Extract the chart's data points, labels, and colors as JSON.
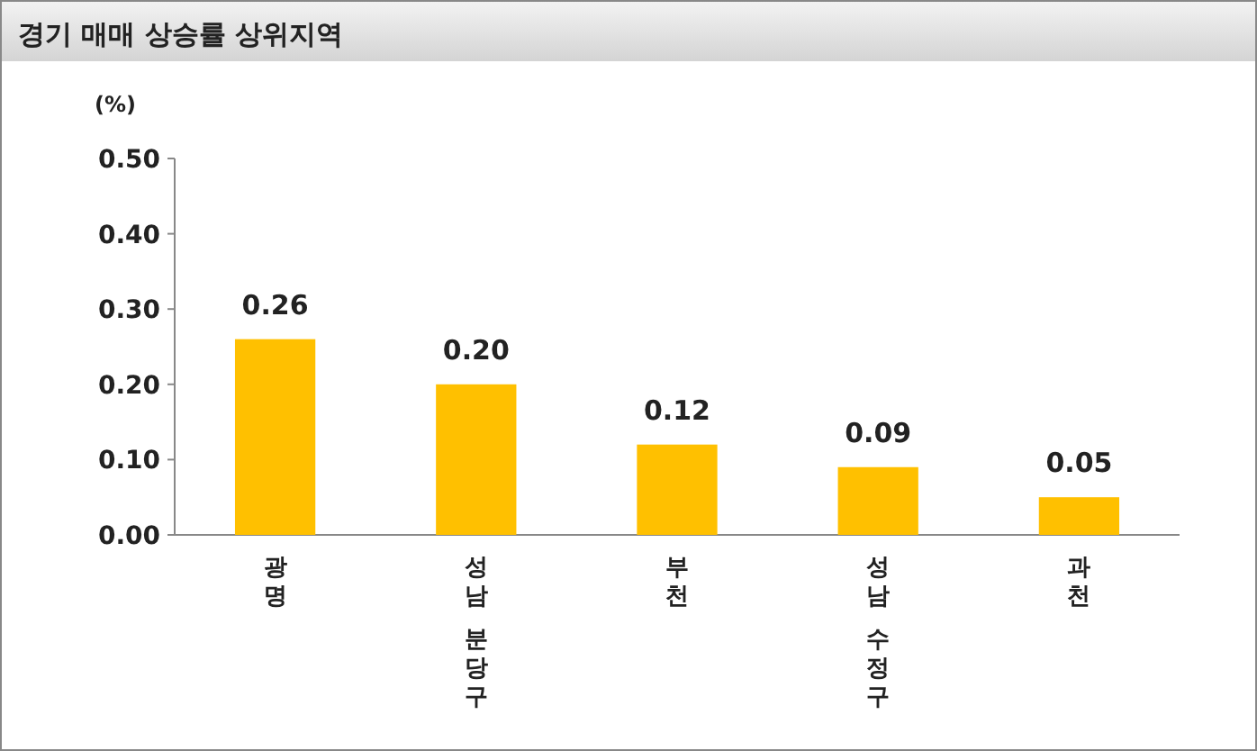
{
  "chart_data": {
    "type": "bar",
    "title": "경기 매매 상승률 상위지역",
    "ylabel": "(%)",
    "categories": [
      "광명",
      "성남 분당구",
      "부천",
      "성남 수정구",
      "과천"
    ],
    "values": [
      0.26,
      0.2,
      0.12,
      0.09,
      0.05
    ],
    "value_labels": [
      "0.26",
      "0.20",
      "0.12",
      "0.09",
      "0.05"
    ],
    "color": "#ffc000",
    "ylim": [
      0,
      0.5
    ],
    "yticks": [
      {
        "value": 0,
        "label": "0.00"
      },
      {
        "value": 0.1,
        "label": "0.10"
      },
      {
        "value": 0.2,
        "label": "0.20"
      },
      {
        "value": 0.3,
        "label": "0.30"
      },
      {
        "value": 0.4,
        "label": "0.40"
      },
      {
        "value": 0.5,
        "label": "0.50"
      }
    ],
    "grid": false
  }
}
